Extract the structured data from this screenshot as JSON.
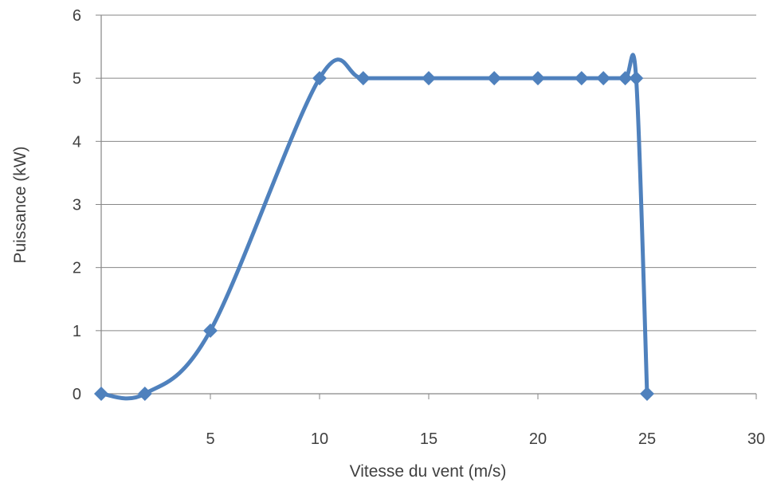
{
  "chart_data": {
    "type": "line",
    "title": "",
    "xlabel": "Vitesse du vent (m/s)",
    "ylabel": "Puissance (kW)",
    "xlim": [
      0,
      30
    ],
    "ylim": [
      0,
      6
    ],
    "x_ticks": [
      "5",
      "10",
      "15",
      "20",
      "25",
      "30"
    ],
    "y_ticks": [
      "0",
      "1",
      "2",
      "3",
      "4",
      "5",
      "6"
    ],
    "grid": "horizontal",
    "legend": "none",
    "smoothed": true,
    "marker": "diamond",
    "series_color": "#4f81bd",
    "gridline_color": "#868686",
    "series": [
      {
        "x": [
          0,
          2,
          5,
          10,
          12,
          15,
          18,
          20,
          22,
          23,
          24,
          24.5,
          25
        ],
        "y": [
          0,
          0,
          1,
          5,
          5,
          5,
          5,
          5,
          5,
          5,
          5,
          5,
          0
        ]
      }
    ]
  }
}
